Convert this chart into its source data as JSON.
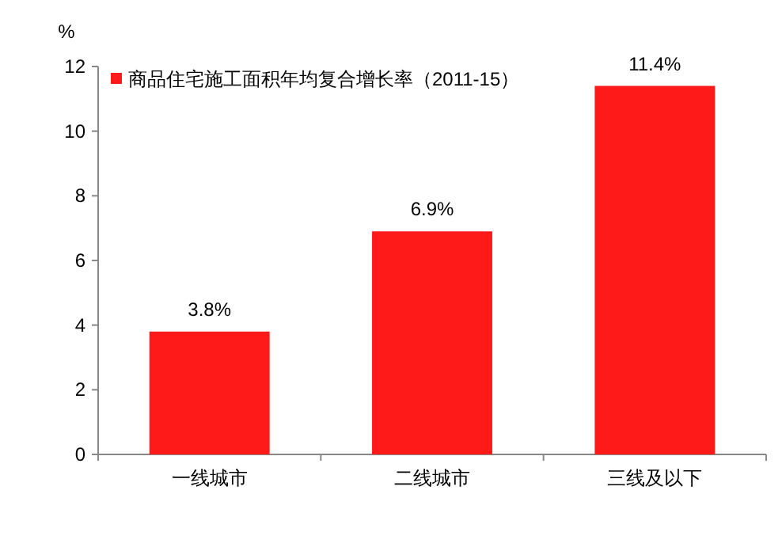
{
  "chart_data": {
    "type": "bar",
    "ylabel": "%",
    "categories": [
      "一线城市",
      "二线城市",
      "三线及以下"
    ],
    "series": [
      {
        "name": "商品住宅施工面积年均复合增长率（2011-15）",
        "color": "#ff1a1a",
        "values": [
          3.8,
          6.9,
          11.4
        ]
      }
    ],
    "value_labels": [
      "3.8%",
      "6.9%",
      "11.4%"
    ],
    "ylim": [
      0,
      12
    ],
    "yticks": [
      0,
      2,
      4,
      6,
      8,
      10,
      12
    ],
    "grid": false,
    "legend": "top left"
  }
}
